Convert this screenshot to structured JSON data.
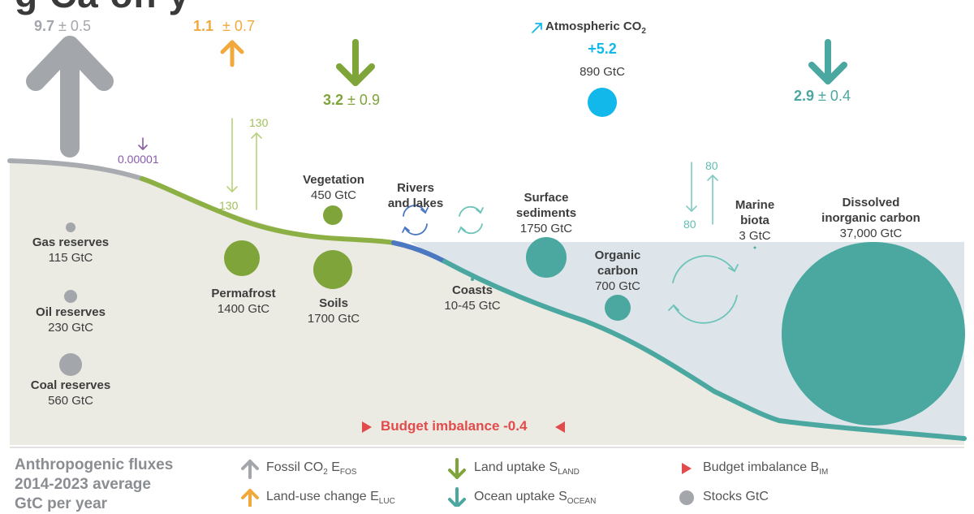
{
  "title_fragment": "g   Ca   on   y",
  "fluxes": {
    "fossil": {
      "value": "9.7",
      "uncertainty": "± 0.5"
    },
    "land_use": {
      "value": "1.1",
      "uncertainty": "± 0.7"
    },
    "land_uptake": {
      "value": "3.2",
      "uncertainty": "± 0.9"
    },
    "ocean_uptake": {
      "value": "2.9",
      "uncertainty": "± 0.4"
    },
    "volcanic": "0.00001",
    "atmosphere": {
      "label": "Atmospheric CO",
      "sub": "2",
      "growth": "+5.2",
      "stock": "890 GtC"
    },
    "land_exchange": {
      "up": "130",
      "down": "130"
    },
    "ocean_exchange": {
      "up": "80",
      "down": "80"
    },
    "budget_imbalance": "Budget imbalance -0.4"
  },
  "stocks": {
    "gas": {
      "name": "Gas reserves",
      "value": "115 GtC"
    },
    "oil": {
      "name": "Oil reserves",
      "value": "230 GtC"
    },
    "coal": {
      "name": "Coal reserves",
      "value": "560 GtC"
    },
    "permafrost": {
      "name": "Permafrost",
      "value": "1400 GtC"
    },
    "vegetation": {
      "name": "Vegetation",
      "value": "450 GtC"
    },
    "soils": {
      "name": "Soils",
      "value": "1700 GtC"
    },
    "rivers": {
      "name1": "Rivers",
      "name2": "and lakes"
    },
    "coasts": {
      "name": "Coasts",
      "value": "10-45 GtC"
    },
    "sediments": {
      "name1": "Surface",
      "name2": "sediments",
      "value": "1750 GtC"
    },
    "organic": {
      "name1": "Organic",
      "name2": "carbon",
      "value": "700 GtC"
    },
    "marine": {
      "name1": "Marine",
      "name2": "biota",
      "value": "3 GtC"
    },
    "dic": {
      "name1": "Dissolved",
      "name2": "inorganic carbon",
      "value": "37,000 GtC"
    }
  },
  "legend": {
    "heading": [
      "Anthropogenic fluxes",
      "2014-2023 average",
      "GtC per year"
    ],
    "fossil": {
      "text": "Fossil CO",
      "sub1": "2",
      "mid": " E",
      "sub2": "FOS"
    },
    "land_use": {
      "text": "Land-use change E",
      "sub": "LUC"
    },
    "land_uptake": {
      "text": "Land uptake S",
      "sub": "LAND"
    },
    "ocean_uptake": {
      "text": "Ocean uptake S",
      "sub": "OCEAN"
    },
    "budget": {
      "text": "Budget imbalance B",
      "sub": "IM"
    },
    "stocks": "Stocks GtC"
  },
  "colors": {
    "fossil": "#a3a6ab",
    "land_use": "#f2a93b",
    "land": "#7ea43a",
    "ocean": "#4aa8a0",
    "atmosphere": "#12b8ea",
    "imbalance": "#e24b4b",
    "volcanic": "#8a5aa8",
    "rivers": "#4b78c0"
  }
}
